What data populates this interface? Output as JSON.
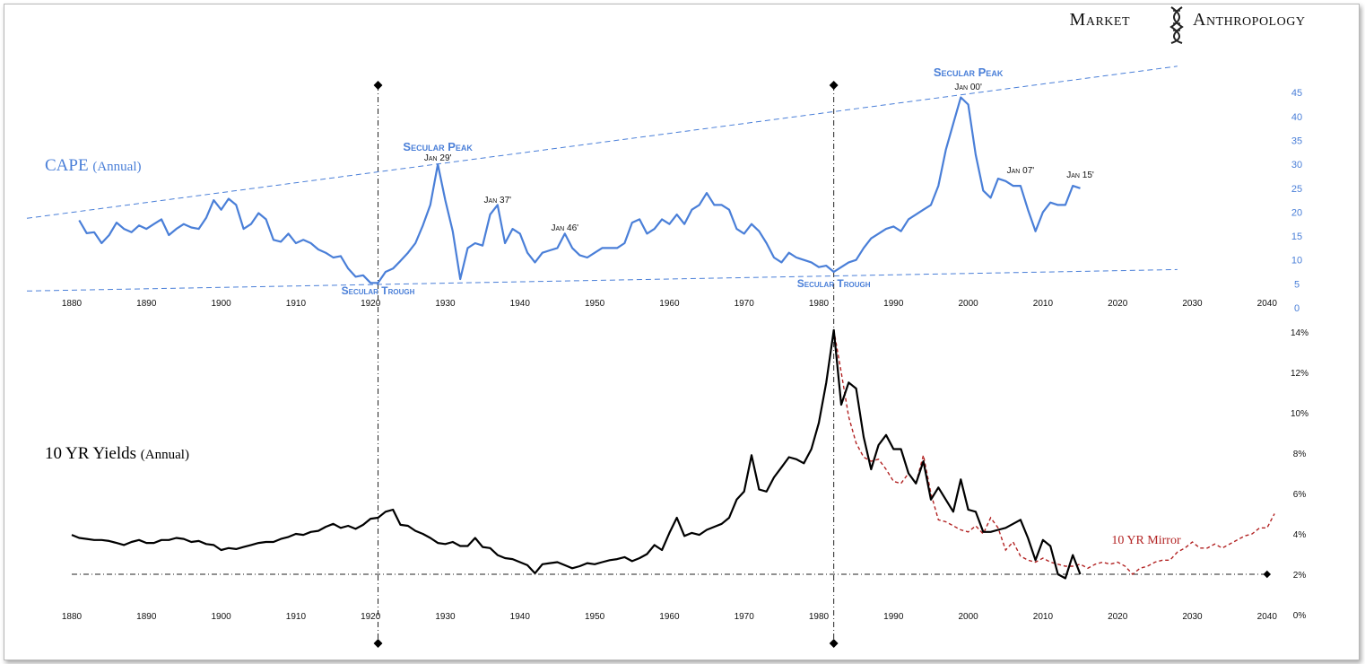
{
  "brand": {
    "left": "Market",
    "right": "Anthropology",
    "logo_icon": "dna-helix-icon"
  },
  "chart_data": [
    {
      "type": "line",
      "title": "CAPE",
      "subtitle": "(Annual)",
      "color": "#4a7fd8",
      "xlim": [
        1880,
        2040
      ],
      "ylim": [
        0,
        45
      ],
      "x_ticks": [
        1880,
        1890,
        1900,
        1910,
        1920,
        1930,
        1940,
        1950,
        1960,
        1970,
        1980,
        1990,
        2000,
        2010,
        2020,
        2030,
        2040
      ],
      "y_ticks": [
        0,
        5,
        10,
        15,
        20,
        25,
        30,
        35,
        40,
        45
      ],
      "series": [
        {
          "x": [
            1881,
            1882,
            1883,
            1884,
            1885,
            1886,
            1887,
            1888,
            1889,
            1890,
            1891,
            1892,
            1893,
            1894,
            1895,
            1896,
            1897,
            1898,
            1899,
            1900,
            1901,
            1902,
            1903,
            1904,
            1905,
            1906,
            1907,
            1908,
            1909,
            1910,
            1911,
            1912,
            1913,
            1914,
            1915,
            1916,
            1917,
            1918,
            1919,
            1920,
            1921,
            1922,
            1923,
            1924,
            1925,
            1926,
            1927,
            1928,
            1929,
            1930,
            1931,
            1932,
            1933,
            1934,
            1935,
            1936,
            1937,
            1938,
            1939,
            1940,
            1941,
            1942,
            1943,
            1944,
            1945,
            1946,
            1947,
            1948,
            1949,
            1950,
            1951,
            1952,
            1953,
            1954,
            1955,
            1956,
            1957,
            1958,
            1959,
            1960,
            1961,
            1962,
            1963,
            1964,
            1965,
            1966,
            1967,
            1968,
            1969,
            1970,
            1971,
            1972,
            1973,
            1974,
            1975,
            1976,
            1977,
            1978,
            1979,
            1980,
            1981,
            1982,
            1983,
            1984,
            1985,
            1986,
            1987,
            1988,
            1989,
            1990,
            1991,
            1992,
            1993,
            1994,
            1995,
            1996,
            1997,
            1998,
            1999,
            2000,
            2001,
            2002,
            2003,
            2004,
            2005,
            2006,
            2007,
            2008,
            2009,
            2010,
            2011,
            2012,
            2013,
            2014,
            2015
          ],
          "y": [
            18.3,
            15.6,
            15.8,
            13.5,
            15.2,
            17.8,
            16.5,
            15.8,
            17.2,
            16.5,
            17.5,
            18.5,
            15.2,
            16.5,
            17.5,
            16.8,
            16.5,
            18.8,
            22.5,
            20.5,
            22.8,
            21.5,
            16.5,
            17.5,
            19.8,
            18.5,
            14.2,
            13.8,
            15.5,
            13.5,
            14.2,
            13.5,
            12.2,
            11.5,
            10.5,
            10.8,
            8.2,
            6.5,
            6.8,
            5.2,
            5.2,
            7.5,
            8.2,
            9.8,
            11.5,
            13.5,
            17.2,
            21.5,
            30.0,
            22.5,
            16.0,
            6.0,
            12.5,
            13.5,
            13.0,
            19.5,
            21.5,
            13.5,
            16.5,
            15.5,
            11.5,
            9.5,
            11.5,
            12.0,
            12.5,
            15.5,
            12.5,
            11.0,
            10.5,
            11.5,
            12.5,
            12.5,
            12.5,
            13.5,
            17.8,
            18.5,
            15.5,
            16.5,
            18.5,
            17.5,
            19.5,
            17.5,
            20.5,
            21.5,
            24.0,
            21.5,
            21.5,
            20.5,
            16.5,
            15.5,
            17.5,
            16.0,
            13.5,
            10.5,
            9.5,
            11.5,
            10.5,
            10.0,
            9.5,
            8.5,
            8.8,
            7.5,
            8.5,
            9.5,
            10.0,
            12.5,
            14.5,
            15.5,
            16.5,
            17.0,
            16.0,
            18.5,
            19.5,
            20.5,
            21.5,
            25.5,
            33.0,
            38.5,
            44.0,
            42.5,
            32.0,
            24.5,
            23.0,
            27.0,
            26.5,
            25.5,
            25.5,
            20.5,
            16.0,
            20.0,
            22.0,
            21.5,
            21.5,
            25.5,
            25.0
          ]
        },
        {
          "name": "",
          "type": "trend",
          "x": [
            1874,
            2028
          ],
          "y": [
            18.7,
            50.5
          ]
        },
        {
          "name": "",
          "type": "trend",
          "x": [
            1874,
            2028
          ],
          "y": [
            3.5,
            8.0
          ]
        }
      ],
      "annotations": [
        {
          "label": "Secular Peak",
          "year": 1929
        },
        {
          "label": "Jan 29'",
          "year": 1929
        },
        {
          "label": "Jan 37'",
          "year": 1937
        },
        {
          "label": "Jan 46'",
          "year": 1946
        },
        {
          "label": "Secular Peak",
          "year": 2000
        },
        {
          "label": "Jan 00'",
          "year": 2000
        },
        {
          "label": "Jan 07'",
          "year": 2007
        },
        {
          "label": "Jan 15'",
          "year": 2015
        },
        {
          "label": "Secular Trough",
          "year": 1921
        },
        {
          "label": "Secular Trough",
          "year": 1982
        }
      ]
    },
    {
      "type": "line",
      "title": "10 YR Yields",
      "subtitle": "(Annual)",
      "color": "#000000",
      "xlim": [
        1880,
        2040
      ],
      "ylim": [
        0,
        14
      ],
      "x_ticks": [
        1880,
        1890,
        1900,
        1910,
        1920,
        1930,
        1940,
        1950,
        1960,
        1970,
        1980,
        1990,
        2000,
        2010,
        2020,
        2030,
        2040
      ],
      "y_ticks": [
        "0%",
        "2%",
        "4%",
        "6%",
        "8%",
        "10%",
        "12%",
        "14%"
      ],
      "series": [
        {
          "x": [
            1880,
            1881,
            1882,
            1883,
            1884,
            1885,
            1886,
            1887,
            1888,
            1889,
            1890,
            1891,
            1892,
            1893,
            1894,
            1895,
            1896,
            1897,
            1898,
            1899,
            1900,
            1901,
            1902,
            1903,
            1904,
            1905,
            1906,
            1907,
            1908,
            1909,
            1910,
            1911,
            1912,
            1913,
            1914,
            1915,
            1916,
            1917,
            1918,
            1919,
            1920,
            1921,
            1922,
            1923,
            1924,
            1925,
            1926,
            1927,
            1928,
            1929,
            1930,
            1931,
            1932,
            1933,
            1934,
            1935,
            1936,
            1937,
            1938,
            1939,
            1940,
            1941,
            1942,
            1943,
            1944,
            1945,
            1946,
            1947,
            1948,
            1949,
            1950,
            1951,
            1952,
            1953,
            1954,
            1955,
            1956,
            1957,
            1958,
            1959,
            1960,
            1961,
            1962,
            1963,
            1964,
            1965,
            1966,
            1967,
            1968,
            1969,
            1970,
            1971,
            1972,
            1973,
            1974,
            1975,
            1976,
            1977,
            1978,
            1979,
            1980,
            1981,
            1982,
            1983,
            1984,
            1985,
            1986,
            1987,
            1988,
            1989,
            1990,
            1991,
            1992,
            1993,
            1994,
            1995,
            1996,
            1997,
            1998,
            1999,
            2000,
            2001,
            2002,
            2003,
            2004,
            2005,
            2006,
            2007,
            2008,
            2009,
            2010,
            2011,
            2012,
            2013,
            2014,
            2015
          ],
          "y": [
            3.95,
            3.8,
            3.75,
            3.7,
            3.7,
            3.65,
            3.55,
            3.45,
            3.6,
            3.7,
            3.55,
            3.55,
            3.7,
            3.7,
            3.8,
            3.75,
            3.6,
            3.65,
            3.5,
            3.45,
            3.2,
            3.3,
            3.25,
            3.35,
            3.45,
            3.55,
            3.6,
            3.6,
            3.75,
            3.85,
            4.0,
            3.95,
            4.1,
            4.15,
            4.35,
            4.5,
            4.3,
            4.4,
            4.25,
            4.45,
            4.75,
            4.8,
            5.1,
            5.2,
            4.45,
            4.4,
            4.15,
            4.0,
            3.8,
            3.55,
            3.5,
            3.6,
            3.4,
            3.4,
            3.8,
            3.35,
            3.3,
            2.95,
            2.8,
            2.75,
            2.6,
            2.45,
            2.05,
            2.5,
            2.55,
            2.6,
            2.45,
            2.3,
            2.4,
            2.55,
            2.5,
            2.6,
            2.7,
            2.75,
            2.85,
            2.65,
            2.8,
            3.0,
            3.45,
            3.2,
            4.05,
            4.8,
            3.9,
            4.05,
            3.95,
            4.2,
            4.35,
            4.5,
            4.8,
            5.7,
            6.1,
            7.9,
            6.2,
            6.1,
            6.8,
            7.3,
            7.8,
            7.7,
            7.5,
            8.2,
            9.5,
            11.5,
            14.1,
            10.4,
            11.5,
            11.2,
            8.8,
            7.2,
            8.4,
            8.9,
            8.2,
            8.2,
            7.0,
            6.5,
            7.6,
            5.7,
            6.3,
            5.7,
            5.1,
            6.7,
            5.2,
            5.1,
            4.1,
            4.1,
            4.2,
            4.3,
            4.5,
            4.7,
            3.8,
            2.7,
            3.7,
            3.4,
            2.0,
            1.8,
            2.95,
            2.0
          ]
        },
        {
          "name": "10 YR Mirror",
          "color": "#b22222",
          "x": [
            1982,
            1983,
            1984,
            1985,
            1986,
            1987,
            1988,
            1989,
            1990,
            1991,
            1992,
            1993,
            1994,
            1995,
            1996,
            1997,
            1998,
            1999,
            2000,
            2001,
            2002,
            2003,
            2004,
            2005,
            2006,
            2007,
            2008,
            2009,
            2010,
            2011,
            2012,
            2013,
            2014,
            2015,
            2016,
            2017,
            2018,
            2019,
            2020,
            2021,
            2022,
            2023,
            2024,
            2025,
            2026,
            2027,
            2028,
            2029,
            2030,
            2031,
            2032,
            2033,
            2034,
            2035,
            2036,
            2037,
            2038,
            2039,
            2040,
            2041
          ],
          "y": [
            14.1,
            12.0,
            9.8,
            8.5,
            7.8,
            7.6,
            7.7,
            7.2,
            6.6,
            6.5,
            7.0,
            6.5,
            7.9,
            6.0,
            4.7,
            4.6,
            4.4,
            4.2,
            4.1,
            4.4,
            4.0,
            4.8,
            4.3,
            3.2,
            3.6,
            2.9,
            2.7,
            2.6,
            2.8,
            2.6,
            2.5,
            2.4,
            2.4,
            2.5,
            2.3,
            2.5,
            2.6,
            2.5,
            2.6,
            2.4,
            2.0,
            2.3,
            2.4,
            2.6,
            2.7,
            2.7,
            3.1,
            3.3,
            3.6,
            3.3,
            3.3,
            3.5,
            3.3,
            3.5,
            3.7,
            3.9,
            4.0,
            4.3,
            4.3,
            5.0
          ]
        }
      ],
      "annotations": [
        {
          "label": "10 YR Mirror"
        }
      ]
    }
  ]
}
